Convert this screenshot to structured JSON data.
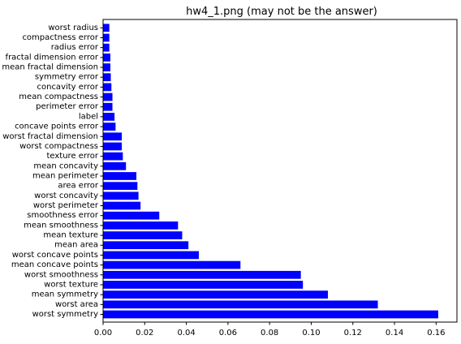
{
  "chart_data": {
    "type": "bar",
    "orientation": "horizontal",
    "title": "hw4_1.png (may not be the answer)",
    "xlabel": "",
    "ylabel": "",
    "xlim": [
      0.0,
      0.17
    ],
    "xticks": [
      0.0,
      0.02,
      0.04,
      0.06,
      0.08,
      0.1,
      0.12,
      0.14,
      0.16
    ],
    "xtick_labels": [
      "0.00",
      "0.02",
      "0.04",
      "0.06",
      "0.08",
      "0.10",
      "0.12",
      "0.14",
      "0.16"
    ],
    "bar_color": "#0000ff",
    "grid": false,
    "legend": "none",
    "categories": [
      "worst symmetry",
      "worst area",
      "mean symmetry",
      "worst texture",
      "worst smoothness",
      "mean concave points",
      "worst concave points",
      "mean area",
      "mean texture",
      "mean smoothness",
      "smoothness error",
      "worst perimeter",
      "worst concavity",
      "area error",
      "mean perimeter",
      "mean concavity",
      "texture error",
      "worst compactness",
      "worst fractal dimension",
      "concave points error",
      "label",
      "perimeter error",
      "mean compactness",
      "concavity error",
      "symmetry error",
      "mean fractal dimension",
      "fractal dimension error",
      "radius error",
      "compactness error",
      "worst radius"
    ],
    "values": [
      0.161,
      0.132,
      0.108,
      0.096,
      0.095,
      0.066,
      0.046,
      0.041,
      0.038,
      0.036,
      0.027,
      0.018,
      0.017,
      0.0165,
      0.016,
      0.011,
      0.0095,
      0.009,
      0.009,
      0.006,
      0.0055,
      0.0045,
      0.0045,
      0.004,
      0.0037,
      0.0035,
      0.0035,
      0.003,
      0.003,
      0.003
    ]
  }
}
